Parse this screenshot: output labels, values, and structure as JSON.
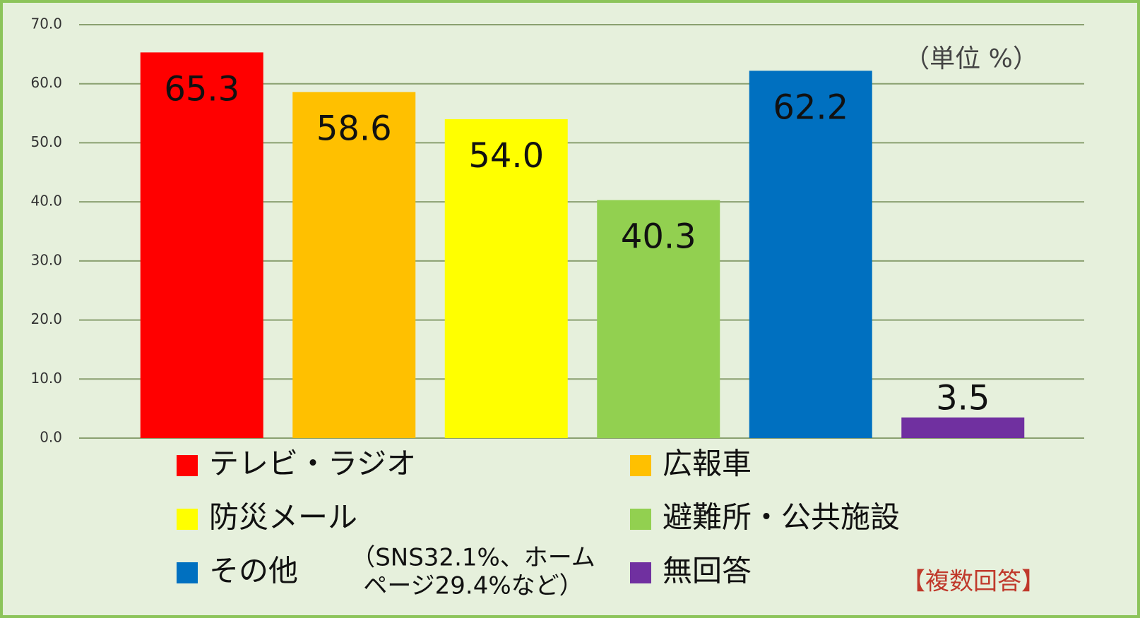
{
  "chart_data": {
    "type": "bar",
    "unit_note": "（単位 %）",
    "categories": [
      "テレビ・ラジオ",
      "広報車",
      "防災メール",
      "避難所・公共施設",
      "その他",
      "無回答"
    ],
    "values": [
      65.3,
      58.6,
      54.0,
      40.3,
      62.2,
      3.5
    ],
    "value_labels": [
      "65.3",
      "58.6",
      "54.0",
      "40.3",
      "62.2",
      "3.5"
    ],
    "colors": [
      "#ff0000",
      "#ffc000",
      "#ffff00",
      "#92d050",
      "#0070c0",
      "#7030a0"
    ],
    "ylim": [
      0,
      70
    ],
    "yticks": [
      {
        "value": 0,
        "label": "0.0"
      },
      {
        "value": 10,
        "label": "10.0"
      },
      {
        "value": 20,
        "label": "20.0"
      },
      {
        "value": 30,
        "label": "30.0"
      },
      {
        "value": 40,
        "label": "40.0"
      },
      {
        "value": 50,
        "label": "50.0"
      },
      {
        "value": 60,
        "label": "60.0"
      },
      {
        "value": 70,
        "label": "70.0"
      }
    ],
    "grid": true,
    "annotation_lines": [
      "（SNS32.1%、ホーム",
      "ページ29.4%など）"
    ],
    "footnote": "【複数回答】"
  }
}
